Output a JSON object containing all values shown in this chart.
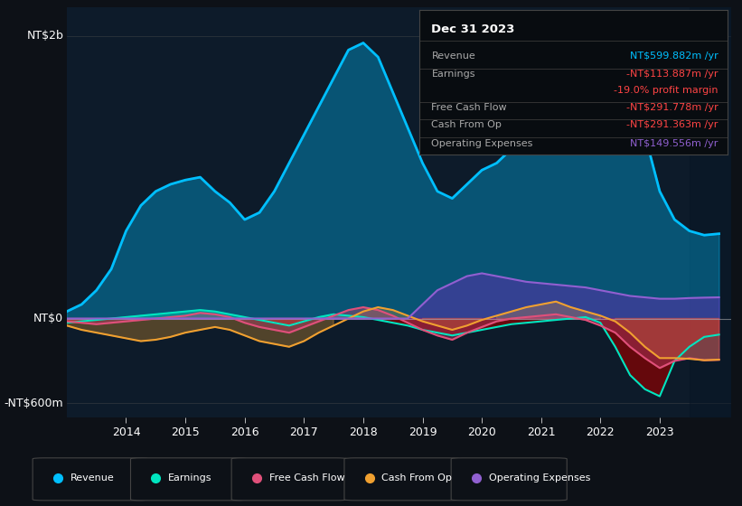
{
  "background_color": "#0d1117",
  "plot_bg_color": "#0d1b2a",
  "ylabel_top": "NT$2b",
  "ylabel_mid": "NT$0",
  "ylabel_bot": "-NT$600m",
  "xlim_start": 2013.0,
  "xlim_end": 2024.2,
  "ylim": [
    -700,
    2200
  ],
  "xtick_labels": [
    "2014",
    "2015",
    "2016",
    "2017",
    "2018",
    "2019",
    "2020",
    "2021",
    "2022",
    "2023"
  ],
  "xtick_values": [
    2014,
    2015,
    2016,
    2017,
    2018,
    2019,
    2020,
    2021,
    2022,
    2023
  ],
  "legend_items": [
    {
      "label": "Revenue",
      "color": "#00bfff"
    },
    {
      "label": "Earnings",
      "color": "#00e5c0"
    },
    {
      "label": "Free Cash Flow",
      "color": "#e0507a"
    },
    {
      "label": "Cash From Op",
      "color": "#f0a030"
    },
    {
      "label": "Operating Expenses",
      "color": "#9060d0"
    }
  ],
  "revenue_x": [
    2013.0,
    2013.25,
    2013.5,
    2013.75,
    2014.0,
    2014.25,
    2014.5,
    2014.75,
    2015.0,
    2015.25,
    2015.5,
    2015.75,
    2016.0,
    2016.25,
    2016.5,
    2016.75,
    2017.0,
    2017.25,
    2017.5,
    2017.75,
    2018.0,
    2018.25,
    2018.5,
    2018.75,
    2019.0,
    2019.25,
    2019.5,
    2019.75,
    2020.0,
    2020.25,
    2020.5,
    2020.75,
    2021.0,
    2021.25,
    2021.5,
    2021.75,
    2022.0,
    2022.25,
    2022.5,
    2022.75,
    2023.0,
    2023.25,
    2023.5,
    2023.75,
    2024.0
  ],
  "revenue_y": [
    50,
    100,
    200,
    350,
    620,
    800,
    900,
    950,
    980,
    1000,
    900,
    820,
    700,
    750,
    900,
    1100,
    1300,
    1500,
    1700,
    1900,
    1950,
    1850,
    1600,
    1350,
    1100,
    900,
    850,
    950,
    1050,
    1100,
    1200,
    1350,
    1500,
    1650,
    1800,
    1850,
    1800,
    1750,
    1600,
    1300,
    900,
    700,
    620,
    590,
    600
  ],
  "earnings_x": [
    2013.0,
    2013.25,
    2013.5,
    2013.75,
    2014.0,
    2014.25,
    2014.5,
    2014.75,
    2015.0,
    2015.25,
    2015.5,
    2015.75,
    2016.0,
    2016.25,
    2016.5,
    2016.75,
    2017.0,
    2017.25,
    2017.5,
    2017.75,
    2018.0,
    2018.25,
    2018.5,
    2018.75,
    2019.0,
    2019.25,
    2019.5,
    2019.75,
    2020.0,
    2020.25,
    2020.5,
    2020.75,
    2021.0,
    2021.25,
    2021.5,
    2021.75,
    2022.0,
    2022.25,
    2022.5,
    2022.75,
    2023.0,
    2023.25,
    2023.5,
    2023.75,
    2024.0
  ],
  "earnings_y": [
    -30,
    -20,
    -10,
    0,
    10,
    20,
    30,
    40,
    50,
    60,
    50,
    30,
    10,
    -10,
    -30,
    -50,
    -20,
    10,
    30,
    20,
    10,
    -10,
    -30,
    -50,
    -80,
    -100,
    -120,
    -100,
    -80,
    -60,
    -40,
    -30,
    -20,
    -10,
    0,
    10,
    -30,
    -200,
    -400,
    -500,
    -550,
    -300,
    -200,
    -130,
    -114
  ],
  "fcf_x": [
    2013.0,
    2013.25,
    2013.5,
    2013.75,
    2014.0,
    2014.25,
    2014.5,
    2014.75,
    2015.0,
    2015.25,
    2015.5,
    2015.75,
    2016.0,
    2016.25,
    2016.5,
    2016.75,
    2017.0,
    2017.25,
    2017.5,
    2017.75,
    2018.0,
    2018.25,
    2018.5,
    2018.75,
    2019.0,
    2019.25,
    2019.5,
    2019.75,
    2020.0,
    2020.25,
    2020.5,
    2020.75,
    2021.0,
    2021.25,
    2021.5,
    2021.75,
    2022.0,
    2022.25,
    2022.5,
    2022.75,
    2023.0,
    2023.25,
    2023.5,
    2023.75,
    2024.0
  ],
  "fcf_y": [
    -20,
    -30,
    -40,
    -30,
    -20,
    -10,
    0,
    10,
    20,
    40,
    30,
    10,
    -30,
    -60,
    -80,
    -100,
    -60,
    -20,
    20,
    60,
    80,
    60,
    20,
    -30,
    -80,
    -120,
    -150,
    -100,
    -60,
    -20,
    0,
    10,
    20,
    30,
    10,
    -10,
    -50,
    -100,
    -200,
    -280,
    -350,
    -300,
    -280,
    -295,
    -292
  ],
  "cfo_x": [
    2013.0,
    2013.25,
    2013.5,
    2013.75,
    2014.0,
    2014.25,
    2014.5,
    2014.75,
    2015.0,
    2015.25,
    2015.5,
    2015.75,
    2016.0,
    2016.25,
    2016.5,
    2016.75,
    2017.0,
    2017.25,
    2017.5,
    2017.75,
    2018.0,
    2018.25,
    2018.5,
    2018.75,
    2019.0,
    2019.25,
    2019.5,
    2019.75,
    2020.0,
    2020.25,
    2020.5,
    2020.75,
    2021.0,
    2021.25,
    2021.5,
    2021.75,
    2022.0,
    2022.25,
    2022.5,
    2022.75,
    2023.0,
    2023.25,
    2023.5,
    2023.75,
    2024.0
  ],
  "cfo_y": [
    -50,
    -80,
    -100,
    -120,
    -140,
    -160,
    -150,
    -130,
    -100,
    -80,
    -60,
    -80,
    -120,
    -160,
    -180,
    -200,
    -160,
    -100,
    -50,
    0,
    50,
    80,
    60,
    20,
    -20,
    -50,
    -80,
    -50,
    -10,
    20,
    50,
    80,
    100,
    120,
    80,
    50,
    20,
    -20,
    -100,
    -200,
    -280,
    -280,
    -285,
    -295,
    -291
  ],
  "opex_x": [
    2013.0,
    2013.25,
    2013.5,
    2013.75,
    2014.0,
    2014.25,
    2014.5,
    2014.75,
    2015.0,
    2015.25,
    2015.5,
    2015.75,
    2016.0,
    2016.25,
    2016.5,
    2016.75,
    2017.0,
    2017.25,
    2017.5,
    2017.75,
    2018.0,
    2018.25,
    2018.5,
    2018.75,
    2019.0,
    2019.25,
    2019.5,
    2019.75,
    2020.0,
    2020.25,
    2020.5,
    2020.75,
    2021.0,
    2021.25,
    2021.5,
    2021.75,
    2022.0,
    2022.25,
    2022.5,
    2022.75,
    2023.0,
    2023.25,
    2023.5,
    2023.75,
    2024.0
  ],
  "opex_y": [
    0,
    0,
    0,
    0,
    0,
    0,
    0,
    0,
    0,
    0,
    0,
    0,
    0,
    0,
    0,
    0,
    0,
    0,
    0,
    0,
    0,
    0,
    0,
    0,
    100,
    200,
    250,
    300,
    320,
    300,
    280,
    260,
    250,
    240,
    230,
    220,
    200,
    180,
    160,
    150,
    140,
    140,
    145,
    148,
    150
  ],
  "info_box_title": "Dec 31 2023",
  "info_rows": [
    {
      "label": "Revenue",
      "value": "NT$599.882m /yr",
      "value_color": "#00bfff",
      "divider": true
    },
    {
      "label": "Earnings",
      "value": "-NT$113.887m /yr",
      "value_color": "#ff4444",
      "divider": false
    },
    {
      "label": "",
      "value": "-19.0% profit margin",
      "value_color": "#ff4444",
      "divider": true
    },
    {
      "label": "Free Cash Flow",
      "value": "-NT$291.778m /yr",
      "value_color": "#ff4444",
      "divider": true
    },
    {
      "label": "Cash From Op",
      "value": "-NT$291.363m /yr",
      "value_color": "#ff4444",
      "divider": true
    },
    {
      "label": "Operating Expenses",
      "value": "NT$149.556m /yr",
      "value_color": "#9060d0",
      "divider": false
    }
  ]
}
